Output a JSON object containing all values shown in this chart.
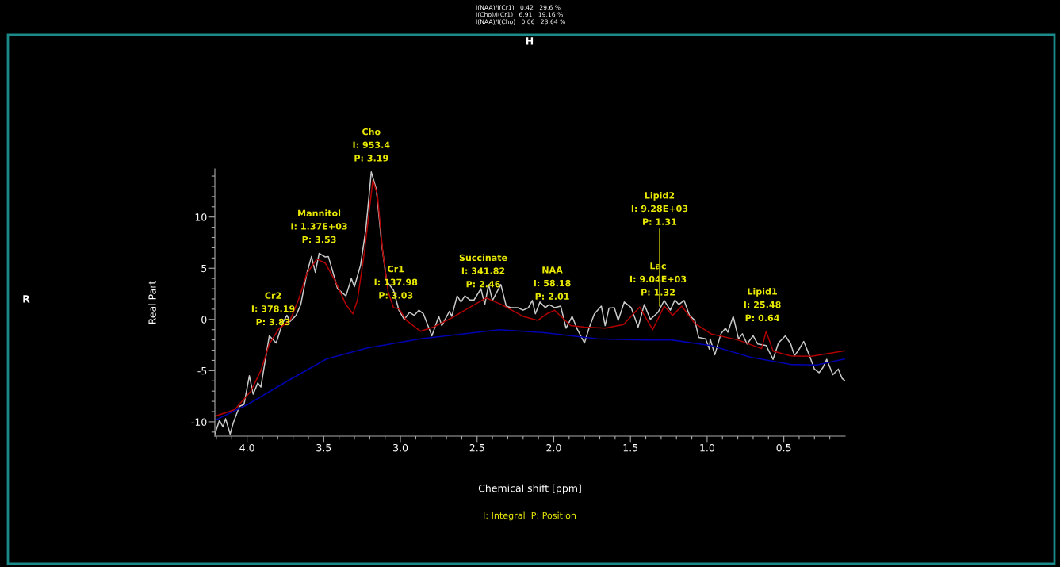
{
  "chart_data": {
    "type": "line",
    "xlabel": "Chemical shift [ppm]",
    "ylabel": "Real Part",
    "xlim": [
      4.21,
      0.1
    ],
    "ylim": [
      -11.4,
      14.7
    ],
    "xticks": [
      {
        "value": 4.2,
        "label": null
      },
      {
        "value": 4.1,
        "label": null
      },
      {
        "value": 4.0,
        "label": "4.0"
      },
      {
        "value": 3.9,
        "label": null
      },
      {
        "value": 3.8,
        "label": null
      },
      {
        "value": 3.7,
        "label": null
      },
      {
        "value": 3.6,
        "label": null
      },
      {
        "value": 3.5,
        "label": "3.5"
      },
      {
        "value": 3.4,
        "label": null
      },
      {
        "value": 3.3,
        "label": null
      },
      {
        "value": 3.2,
        "label": null
      },
      {
        "value": 3.1,
        "label": null
      },
      {
        "value": 3.0,
        "label": "3.0"
      },
      {
        "value": 2.9,
        "label": null
      },
      {
        "value": 2.8,
        "label": null
      },
      {
        "value": 2.7,
        "label": null
      },
      {
        "value": 2.6,
        "label": null
      },
      {
        "value": 2.5,
        "label": "2.5"
      },
      {
        "value": 2.4,
        "label": null
      },
      {
        "value": 2.3,
        "label": null
      },
      {
        "value": 2.2,
        "label": null
      },
      {
        "value": 2.1,
        "label": null
      },
      {
        "value": 2.0,
        "label": "2.0"
      },
      {
        "value": 1.9,
        "label": null
      },
      {
        "value": 1.8,
        "label": null
      },
      {
        "value": 1.7,
        "label": null
      },
      {
        "value": 1.6,
        "label": null
      },
      {
        "value": 1.5,
        "label": "1.5"
      },
      {
        "value": 1.4,
        "label": null
      },
      {
        "value": 1.3,
        "label": null
      },
      {
        "value": 1.2,
        "label": null
      },
      {
        "value": 1.1,
        "label": null
      },
      {
        "value": 1.0,
        "label": "1.0"
      },
      {
        "value": 0.9,
        "label": null
      },
      {
        "value": 0.8,
        "label": null
      },
      {
        "value": 0.7,
        "label": null
      },
      {
        "value": 0.6,
        "label": null
      },
      {
        "value": 0.5,
        "label": "0.5"
      },
      {
        "value": 0.4,
        "label": null
      },
      {
        "value": 0.3,
        "label": null
      },
      {
        "value": 0.2,
        "label": null
      }
    ],
    "yticks": [
      {
        "value": -11,
        "label": null
      },
      -10,
      {
        "value": -9,
        "label": null
      },
      {
        "value": -8,
        "label": null
      },
      {
        "value": -7,
        "label": null
      },
      {
        "value": -6,
        "label": null
      },
      -5,
      {
        "value": -4,
        "label": null
      },
      {
        "value": -3,
        "label": null
      },
      {
        "value": -2,
        "label": null
      },
      {
        "value": -1,
        "label": null
      },
      0,
      {
        "value": 1,
        "label": null
      },
      {
        "value": 2,
        "label": null
      },
      {
        "value": 3,
        "label": null
      },
      {
        "value": 4,
        "label": null
      },
      5,
      {
        "value": 6,
        "label": null
      },
      {
        "value": 7,
        "label": null
      },
      {
        "value": 8,
        "label": null
      },
      {
        "value": 9,
        "label": null
      },
      10,
      {
        "value": 11,
        "label": null
      },
      {
        "value": 12,
        "label": null
      },
      {
        "value": 13,
        "label": null
      },
      {
        "value": 14,
        "label": null
      }
    ],
    "grid": false,
    "legend": false,
    "series": [
      {
        "color": "#c8c8c8",
        "x": [
          4.21,
          4.18,
          4.157,
          4.14,
          4.11,
          4.09,
          4.05,
          4.02,
          3.985,
          3.96,
          3.93,
          3.91,
          3.855,
          3.81,
          3.77,
          3.74,
          3.72,
          3.68,
          3.65,
          3.61,
          3.58,
          3.555,
          3.53,
          3.49,
          3.47,
          3.44,
          3.41,
          3.355,
          3.32,
          3.3,
          3.26,
          3.225,
          3.19,
          3.157,
          3.12,
          3.09,
          3.045,
          3.01,
          2.975,
          2.94,
          2.91,
          2.88,
          2.85,
          2.795,
          2.75,
          2.73,
          2.68,
          2.665,
          2.63,
          2.605,
          2.58,
          2.545,
          2.52,
          2.475,
          2.45,
          2.425,
          2.4,
          2.345,
          2.31,
          2.28,
          2.235,
          2.2,
          2.165,
          2.14,
          2.12,
          2.09,
          2.055,
          2.03,
          1.995,
          1.955,
          1.92,
          1.88,
          1.85,
          1.8,
          1.77,
          1.735,
          1.69,
          1.665,
          1.64,
          1.605,
          1.58,
          1.54,
          1.495,
          1.45,
          1.41,
          1.37,
          1.32,
          1.28,
          1.24,
          1.21,
          1.185,
          1.15,
          1.115,
          1.08,
          1.055,
          1.01,
          0.985,
          0.98,
          0.95,
          0.91,
          0.88,
          0.865,
          0.83,
          0.795,
          0.77,
          0.74,
          0.7,
          0.67,
          0.615,
          0.57,
          0.535,
          0.49,
          0.455,
          0.43,
          0.4,
          0.37,
          0.335,
          0.3,
          0.27,
          0.245,
          0.22,
          0.18,
          0.145,
          0.12,
          0.1
        ],
        "values": [
          -11.2,
          -9.85,
          -10.5,
          -9.7,
          -11.2,
          -10.1,
          -8.5,
          -8.3,
          -5.5,
          -7.3,
          -6.2,
          -6.6,
          -1.6,
          -2.3,
          -0.4,
          0.4,
          -0.2,
          0.4,
          1.45,
          4.5,
          6.15,
          4.6,
          6.45,
          6.1,
          6.15,
          4.6,
          3.0,
          2.3,
          4.0,
          3.2,
          5.3,
          8.85,
          14.4,
          12.7,
          7.1,
          3.75,
          2.85,
          0.9,
          0.0,
          0.7,
          0.4,
          0.9,
          0.55,
          -1.6,
          0.3,
          -0.6,
          0.8,
          0.3,
          2.3,
          1.7,
          2.3,
          1.9,
          1.9,
          3.0,
          1.45,
          3.4,
          1.85,
          3.4,
          1.3,
          1.15,
          1.15,
          0.9,
          1.15,
          1.85,
          0.55,
          1.7,
          1.15,
          1.45,
          1.15,
          1.3,
          -0.85,
          0.3,
          -0.85,
          -2.3,
          -0.85,
          0.55,
          1.3,
          -0.6,
          1.1,
          1.15,
          -0.1,
          1.7,
          1.15,
          -0.75,
          1.45,
          0.0,
          0.7,
          1.85,
          0.9,
          1.9,
          1.45,
          1.85,
          0.4,
          -0.1,
          -1.75,
          -1.9,
          -2.9,
          -1.9,
          -3.45,
          -1.4,
          -0.85,
          -1.25,
          0.3,
          -1.9,
          -1.4,
          -2.4,
          -1.6,
          -2.4,
          -2.55,
          -3.9,
          -2.3,
          -1.6,
          -2.4,
          -3.55,
          -2.9,
          -2.15,
          -3.45,
          -4.85,
          -5.2,
          -4.7,
          -3.9,
          -5.4,
          -4.85,
          -5.75,
          -6.0
        ]
      },
      {
        "color": "#b00000",
        "x": [
          4.21,
          4.08,
          3.975,
          3.91,
          3.855,
          3.79,
          3.72,
          3.665,
          3.61,
          3.545,
          3.49,
          3.425,
          3.355,
          3.31,
          3.28,
          3.235,
          3.18,
          3.15,
          3.115,
          3.08,
          3.045,
          3.01,
          2.96,
          2.87,
          2.785,
          2.665,
          2.58,
          2.44,
          2.34,
          2.2,
          2.105,
          2.045,
          1.995,
          1.89,
          1.8,
          1.665,
          1.545,
          1.44,
          1.355,
          1.28,
          1.225,
          1.165,
          1.08,
          0.975,
          0.8,
          0.645,
          0.615,
          0.57,
          0.455,
          0.32,
          0.1
        ],
        "values": [
          -9.45,
          -8.8,
          -7.0,
          -5.0,
          -2.4,
          -0.85,
          -0.1,
          1.9,
          4.5,
          5.9,
          5.5,
          3.75,
          1.45,
          0.55,
          1.9,
          6.55,
          13.6,
          12.2,
          6.55,
          2.7,
          1.15,
          1.05,
          -0.1,
          -1.15,
          -0.75,
          0.15,
          0.9,
          2.1,
          1.45,
          0.3,
          -0.1,
          0.55,
          0.9,
          -0.6,
          -0.75,
          -0.85,
          -0.5,
          1.2,
          -1.0,
          1.3,
          0.4,
          1.3,
          -0.4,
          -1.4,
          -2.0,
          -2.85,
          -1.15,
          -3.1,
          -3.55,
          -3.6,
          -3.05
        ]
      },
      {
        "color": "#0000b0",
        "x": [
          4.21,
          3.995,
          3.735,
          3.48,
          3.22,
          2.87,
          2.665,
          2.355,
          2.06,
          1.715,
          1.41,
          1.235,
          0.975,
          0.715,
          0.455,
          0.285,
          0.1
        ],
        "values": [
          -9.85,
          -8.3,
          -6.0,
          -3.85,
          -2.8,
          -1.9,
          -1.55,
          -1.0,
          -1.3,
          -1.9,
          -2.0,
          -2.0,
          -2.55,
          -3.7,
          -4.4,
          -4.45,
          -3.85
        ]
      }
    ],
    "annotations": [
      "I(NAA)/I(Cr1)   0.42   29.6 %",
      "I(Cho)/I(Cr1)   6.91   19.16 %",
      "I(NAA)/I(Cho)   0.06   23.64 %",
      "H",
      "R",
      "I: Integral  P: Position",
      {
        "text": "Cr2\nI: 378.19\nP: 3.83",
        "x": 3.83,
        "y": -1.6
      },
      {
        "text": "Mannitol\nI: 1.37E+03\nP: 3.53",
        "x": 3.53,
        "y": 6.45
      },
      {
        "text": "Cho\nI: 953.4\nP: 3.19",
        "x": 3.19,
        "y": 14.4
      },
      {
        "text": "Cr1\nI: 137.98\nP: 3.03",
        "x": 3.03,
        "y": 1.0
      },
      {
        "text": "Succinate\nI: 341.82\nP: 2.46",
        "x": 2.46,
        "y": 2.1
      },
      {
        "text": "NAA\nI: 58.18\nP: 2.01",
        "x": 2.01,
        "y": 0.9
      },
      {
        "text": "Lac\nI: 9.04E+03\nP: 1.32",
        "x": 1.32,
        "y": 1.3
      },
      {
        "text": "Lipid2\nI: 9.28E+03\nP: 1.31",
        "x": 1.31,
        "y": 1.3
      },
      {
        "text": "Lipid1\nI: 25.48\nP: 0.64",
        "x": 0.64,
        "y": -1.2
      }
    ]
  }
}
